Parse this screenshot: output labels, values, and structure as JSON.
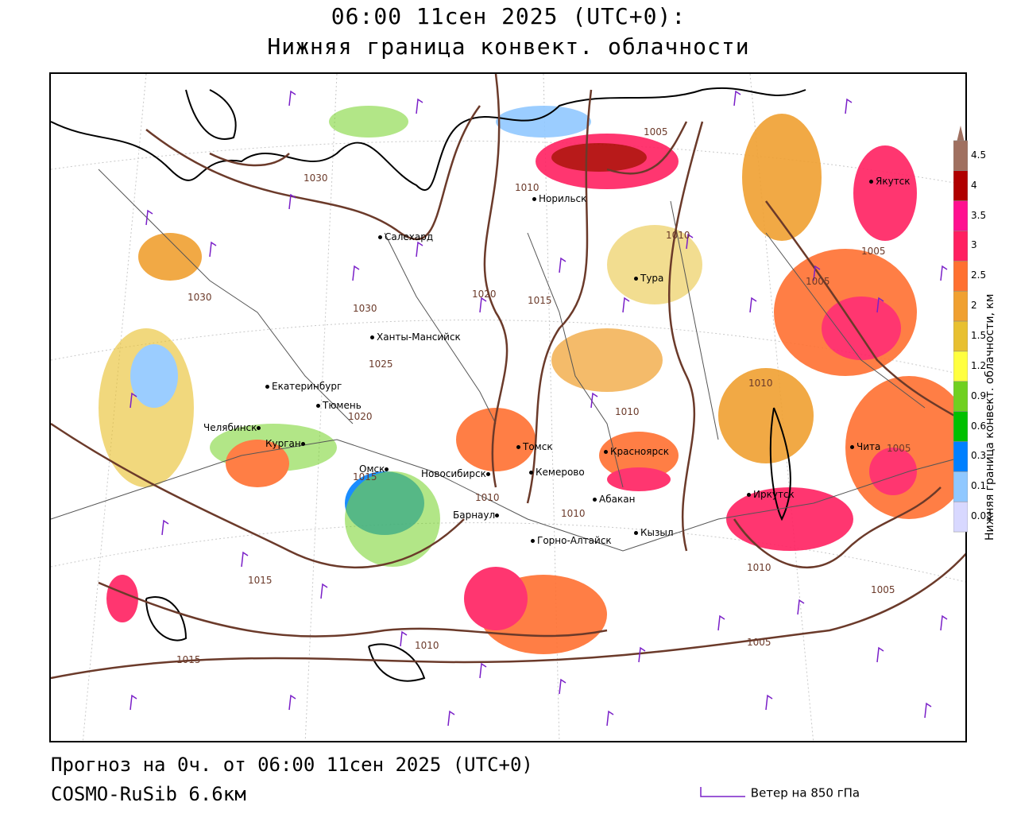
{
  "header": {
    "line1": "06:00 11сен 2025 (UTC+0):",
    "line2": "Нижняя граница конвект. облачности"
  },
  "footer": {
    "forecast": "Прогноз на 0ч. от 06:00 11сен 2025 (UTC+0)",
    "model": "COSMO-RuSib 6.6км",
    "wind_legend": "Ветер на 850 гПа"
  },
  "legend": {
    "title": "Нижняя граница конвект. облачности, км",
    "levels": [
      "4.5",
      "4",
      "3.5",
      "3",
      "2.5",
      "2",
      "1.5",
      "1.2",
      "0.9",
      "0.6",
      "0.3",
      "0.1",
      "0.03"
    ],
    "colors": [
      "#a07060",
      "#b00000",
      "#ff1090",
      "#ff2060",
      "#ff7030",
      "#f0a030",
      "#e8c030",
      "#ffff40",
      "#70d020",
      "#00c000",
      "#0080ff",
      "#90c8ff",
      "#d8d8ff"
    ]
  },
  "cities": [
    {
      "name": "Норильск"
    },
    {
      "name": "Якутск"
    },
    {
      "name": "Салехард"
    },
    {
      "name": "Тура"
    },
    {
      "name": "Ханты-Мансийск"
    },
    {
      "name": "Екатеринбург"
    },
    {
      "name": "Тюмень"
    },
    {
      "name": "Челябинск"
    },
    {
      "name": "Курган"
    },
    {
      "name": "Омск"
    },
    {
      "name": "Новосибирск"
    },
    {
      "name": "Томск"
    },
    {
      "name": "Кемерово"
    },
    {
      "name": "Красноярск"
    },
    {
      "name": "Абакан"
    },
    {
      "name": "Барнаул"
    },
    {
      "name": "Горно-Алтайск"
    },
    {
      "name": "Кызыл"
    },
    {
      "name": "Иркутск"
    },
    {
      "name": "Чита"
    }
  ],
  "isobars": [
    "1030",
    "1005",
    "1010",
    "1030",
    "1030",
    "1020",
    "1015",
    "1010",
    "1005",
    "1005",
    "1025",
    "1020",
    "1015",
    "1010",
    "1010",
    "1010",
    "1005",
    "1015",
    "1010",
    "1015",
    "1005",
    "1005",
    "1010",
    "1010"
  ]
}
